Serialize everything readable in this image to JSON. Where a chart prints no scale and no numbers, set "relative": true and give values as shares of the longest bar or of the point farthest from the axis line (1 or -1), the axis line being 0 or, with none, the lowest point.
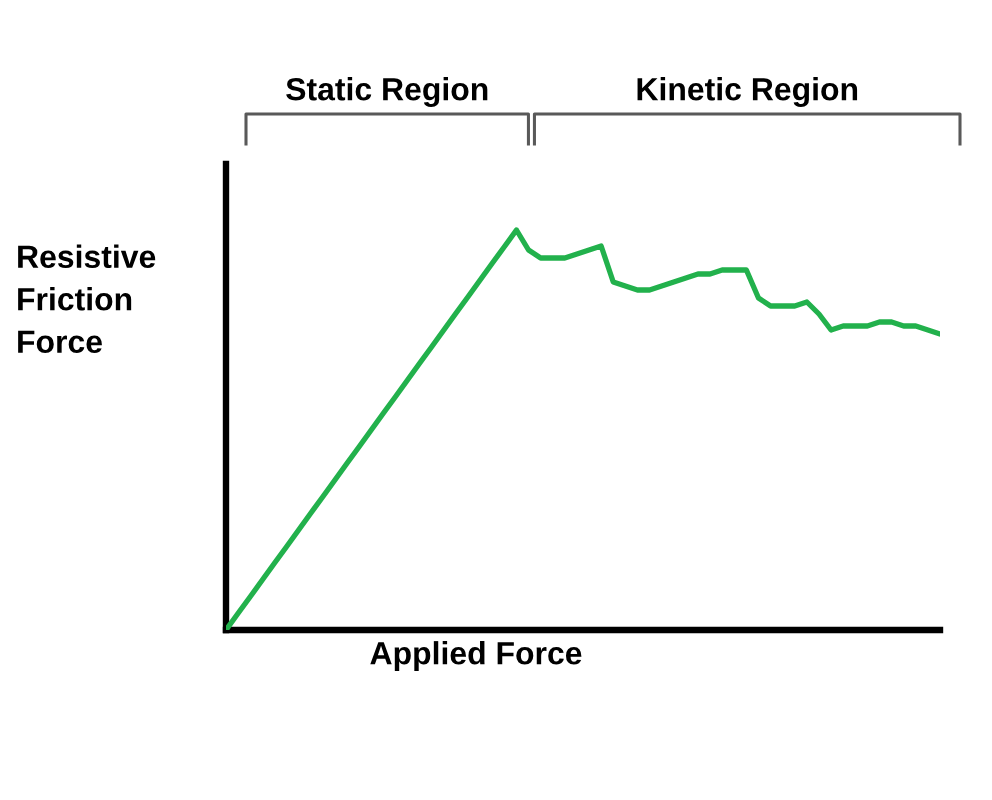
{
  "chart_data": {
    "type": "line",
    "xlabel": "Applied Force",
    "ylabel": "Resistive Friction Force",
    "relative": true,
    "line_style": "solid",
    "categories": [
      null,
      null,
      null,
      null,
      null,
      null,
      null,
      null,
      null,
      null,
      null,
      null,
      null,
      null,
      null,
      null,
      null,
      null,
      null,
      null,
      null,
      null,
      null,
      null,
      null,
      null,
      null,
      null,
      null,
      null,
      null,
      null,
      null,
      null,
      null,
      null,
      null,
      null,
      null,
      null,
      null,
      null,
      null,
      null,
      null,
      null,
      null,
      null,
      null,
      null,
      null,
      null,
      null,
      null,
      null,
      null,
      null,
      null,
      null,
      null
    ],
    "series": [
      {
        "color": "#22b14c",
        "values": [
          0,
          0.042,
          0.083,
          0.125,
          0.167,
          0.208,
          0.25,
          0.292,
          0.333,
          0.375,
          0.417,
          0.458,
          0.5,
          0.542,
          0.583,
          0.625,
          0.667,
          0.708,
          0.75,
          0.792,
          0.833,
          0.875,
          0.917,
          0.958,
          1,
          0.95,
          0.93,
          0.93,
          0.93,
          0.94,
          0.95,
          0.96,
          0.87,
          0.86,
          0.85,
          0.85,
          0.86,
          0.87,
          0.88,
          0.89,
          0.89,
          0.9,
          0.9,
          0.9,
          0.83,
          0.81,
          0.81,
          0.81,
          0.82,
          0.79,
          0.75,
          0.76,
          0.76,
          0.76,
          0.77,
          0.77,
          0.76,
          0.76,
          0.75,
          0.74
        ]
      }
    ],
    "annotations": [
      "Static Region",
      "Kinetic Region"
    ]
  }
}
